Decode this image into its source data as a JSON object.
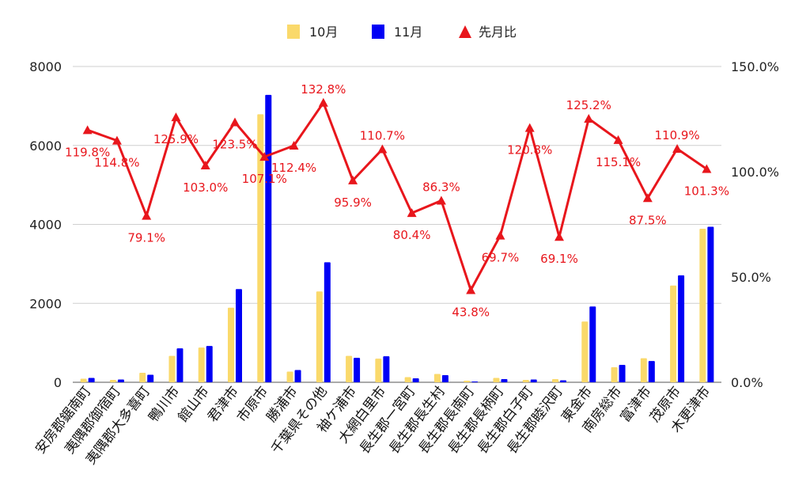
{
  "chart_data": {
    "type": "bar+line",
    "legend_position": "top",
    "grid": true,
    "categories": [
      "安房郡鋸南町",
      "夷隅郡御宿町",
      "夷隅郡大多喜町",
      "鴨川市",
      "館山市",
      "君津市",
      "市原市",
      "勝浦市",
      "千葉県その他",
      "袖ケ浦市",
      "大網白里市",
      "長生郡一宮町",
      "長生郡長生村",
      "長生郡長南町",
      "長生郡長柄町",
      "長生郡白子町",
      "長生郡睦沢町",
      "東金市",
      "南房総市",
      "富津市",
      "茂原市",
      "木更津市"
    ],
    "series": [
      {
        "name": "10月",
        "type": "bar",
        "axis": "left",
        "color": "#fad96b",
        "values": [
          90,
          60,
          240,
          670,
          880,
          1890,
          6790,
          270,
          2300,
          670,
          600,
          130,
          210,
          40,
          110,
          60,
          80,
          1540,
          380,
          610,
          2450,
          3890
        ]
      },
      {
        "name": "11月",
        "type": "bar",
        "axis": "left",
        "color": "#0000f5",
        "values": [
          110,
          70,
          190,
          860,
          920,
          2360,
          7280,
          310,
          3040,
          620,
          660,
          100,
          180,
          20,
          80,
          70,
          50,
          1920,
          440,
          540,
          2710,
          3940
        ]
      },
      {
        "name": "先月比",
        "type": "line",
        "axis": "right",
        "color": "#e8161c",
        "values": [
          119.8,
          114.8,
          79.1,
          125.9,
          103.0,
          123.5,
          107.1,
          112.4,
          132.8,
          95.9,
          110.7,
          80.4,
          86.3,
          43.8,
          69.7,
          120.8,
          69.1,
          125.2,
          115.1,
          87.5,
          110.9,
          101.3
        ],
        "labels": [
          "119.8%",
          "114.8%",
          "79.1%",
          "125.9%",
          "103.0%",
          "123.5%",
          "107.1%",
          "112.4%",
          "132.8%",
          "95.9%",
          "110.7%",
          "80.4%",
          "86.3%",
          "43.8%",
          "69.7%",
          "120.8%",
          "69.1%",
          "125.2%",
          "115.1%",
          "87.5%",
          "110.9%",
          "101.3%"
        ]
      }
    ],
    "y_left": {
      "min": 0,
      "max": 8000,
      "ticks": [
        "0",
        "2000",
        "4000",
        "6000",
        "8000"
      ],
      "tick_values": [
        0,
        2000,
        4000,
        6000,
        8000
      ]
    },
    "y_right": {
      "min": 0,
      "max": 150,
      "ticks": [
        "0.0%",
        "50.0%",
        "100.0%",
        "150.0%"
      ],
      "tick_values": [
        0,
        50,
        100,
        150
      ]
    },
    "label_offsets": [
      "below",
      "below",
      "below",
      "below",
      "below",
      "below",
      "below",
      "below",
      "above",
      "below",
      "above",
      "below",
      "above",
      "below",
      "below",
      "below",
      "below",
      "above",
      "below",
      "below",
      "above",
      "below"
    ]
  }
}
